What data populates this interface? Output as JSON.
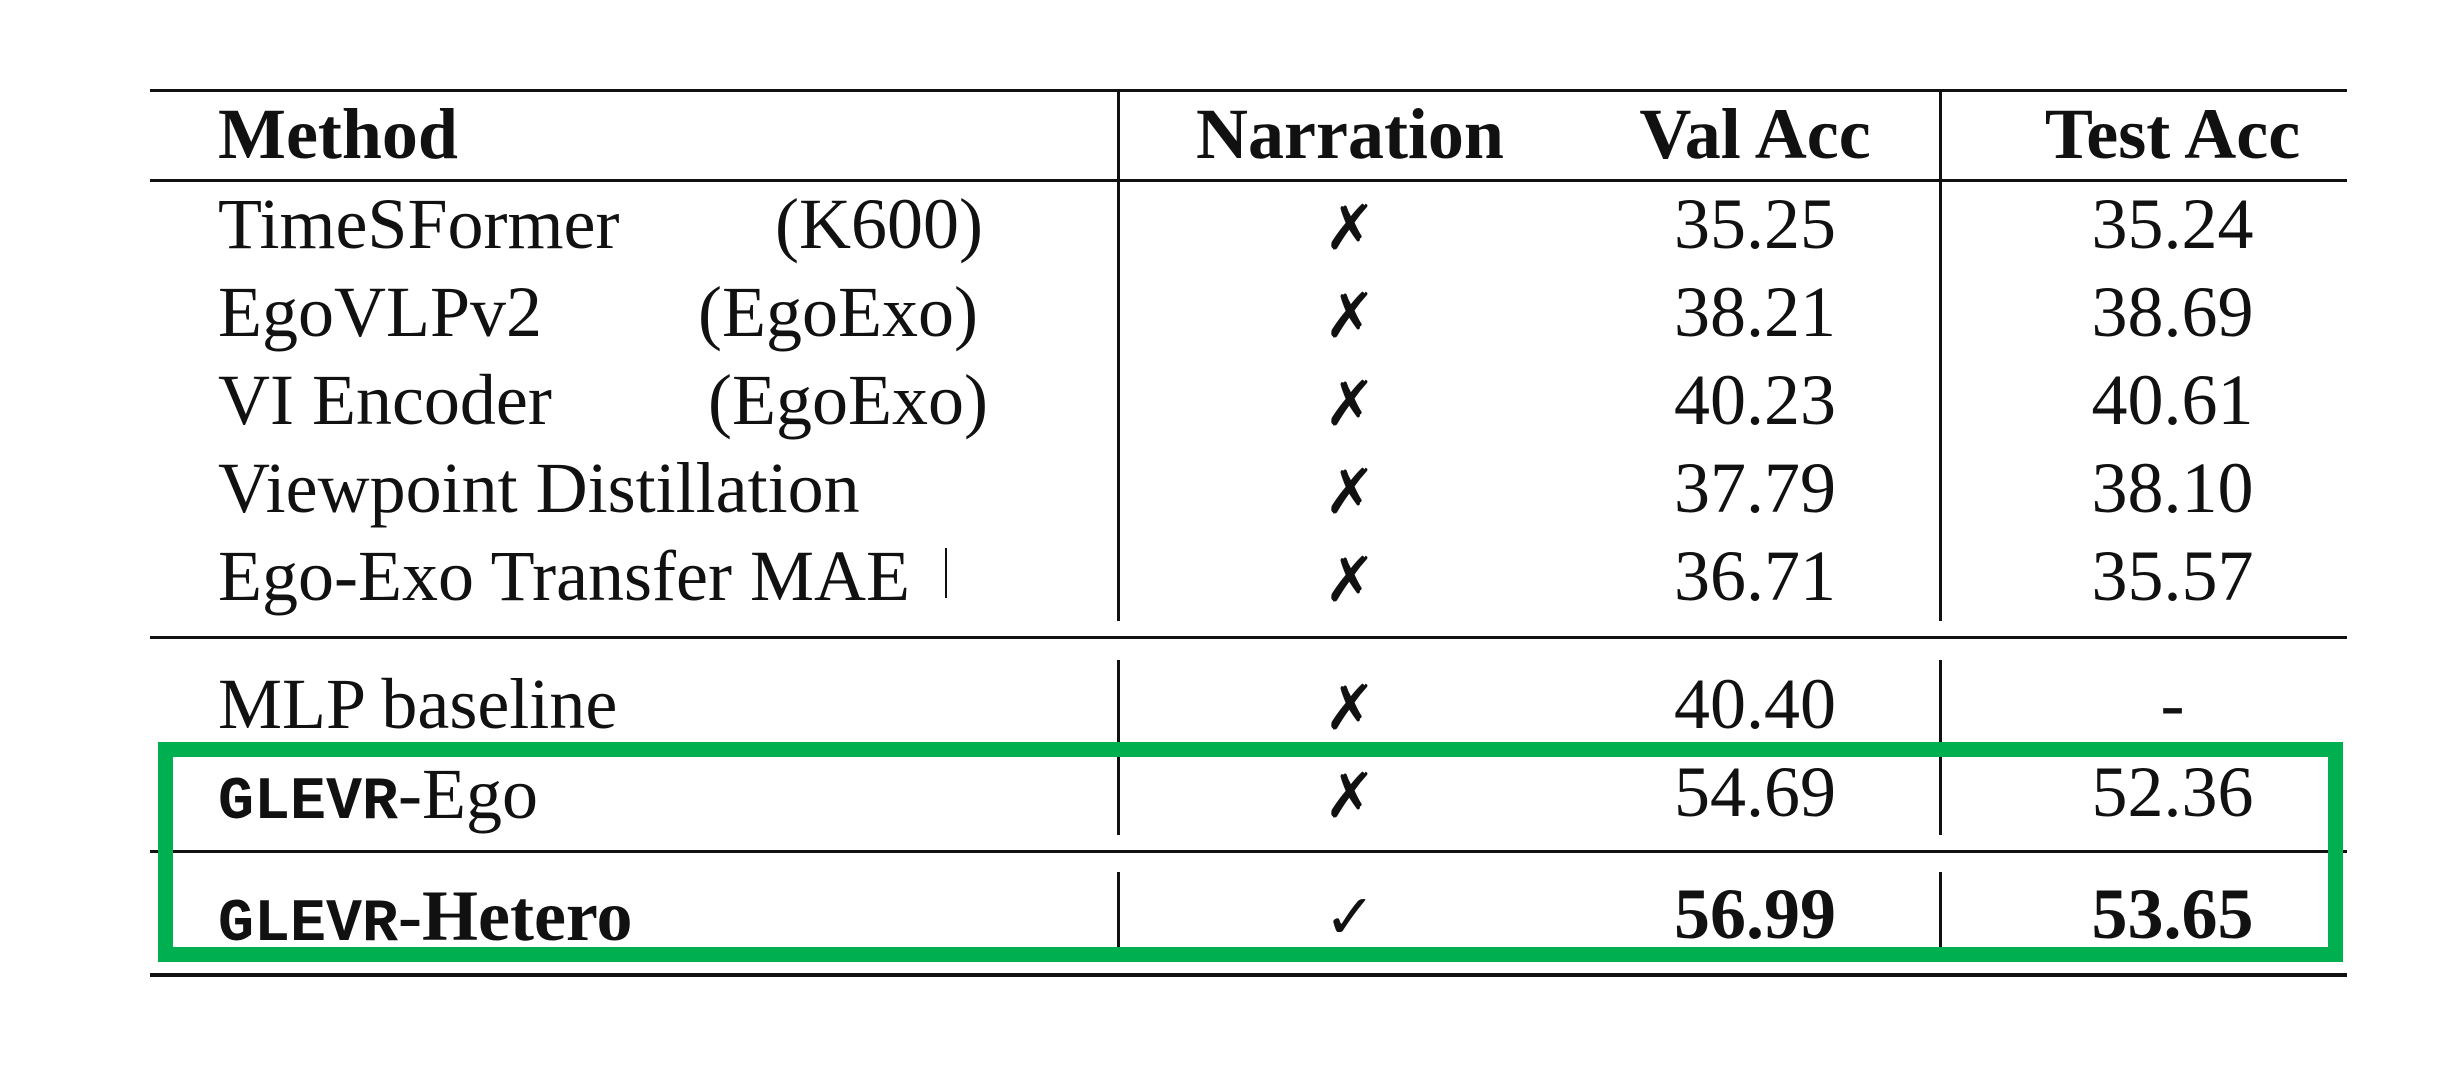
{
  "table": {
    "headers": [
      "Method",
      "Narration",
      "Val Acc",
      "Test Acc"
    ],
    "groups": [
      {
        "rows": [
          {
            "method": "TimeSFormer",
            "pretrain": "(K600)",
            "narration": "✗",
            "val": "35.25",
            "test": "35.24"
          },
          {
            "method": "EgoVLPv2",
            "pretrain": "(EgoExo)",
            "narration": "✗",
            "val": "38.21",
            "test": "38.69"
          },
          {
            "method": "VI Encoder",
            "pretrain": "(EgoExo)",
            "narration": "✗",
            "val": "40.23",
            "test": "40.61"
          },
          {
            "method": "Viewpoint Distillation",
            "pretrain": "",
            "narration": "✗",
            "val": "37.79",
            "test": "38.10"
          },
          {
            "method": "Ego-Exo Transfer MAE",
            "pretrain": "",
            "narration": "✗",
            "val": "36.71",
            "test": "35.57"
          }
        ]
      },
      {
        "rows": [
          {
            "method": "MLP baseline",
            "narration": "✗",
            "val": "40.40",
            "test": "-"
          },
          {
            "method_mono": "GLEVR",
            "method_suffix": "-Ego",
            "narration": "✗",
            "val": "54.69",
            "test": "52.36"
          },
          {
            "method_mono": "GLEVR",
            "method_suffix": "-Hetero",
            "narration": "✓",
            "val": "56.99",
            "test": "53.65",
            "bold": true
          }
        ]
      }
    ]
  },
  "colors": {
    "highlight_box": "#00b050",
    "rule": "#111111"
  }
}
